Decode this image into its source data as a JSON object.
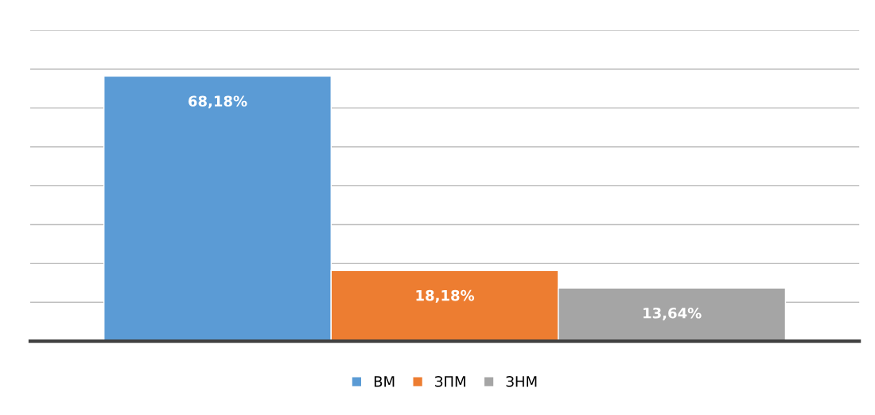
{
  "chart_data": {
    "type": "bar",
    "categories": [
      null
    ],
    "series": [
      {
        "name": "ВМ",
        "color": "#5b9bd5",
        "values": [
          68.18
        ],
        "value_labels": [
          "68,18%"
        ]
      },
      {
        "name": "ЗПМ",
        "color": "#ed7d31",
        "values": [
          18.18
        ],
        "value_labels": [
          "18,18%"
        ]
      },
      {
        "name": "ЗНМ",
        "color": "#a5a5a5",
        "values": [
          13.64
        ],
        "value_labels": [
          "13,64%"
        ]
      }
    ],
    "ylim": [
      0,
      80
    ],
    "yticks": [
      {
        "value": 0,
        "label": null
      },
      {
        "value": 10,
        "label": null
      },
      {
        "value": 20,
        "label": null
      },
      {
        "value": 30,
        "label": null
      },
      {
        "value": 40,
        "label": null
      },
      {
        "value": 50,
        "label": null
      },
      {
        "value": 60,
        "label": null
      },
      {
        "value": 70,
        "label": null
      },
      {
        "value": 80,
        "label": null
      }
    ],
    "grid": "y",
    "legend": "bottom"
  }
}
